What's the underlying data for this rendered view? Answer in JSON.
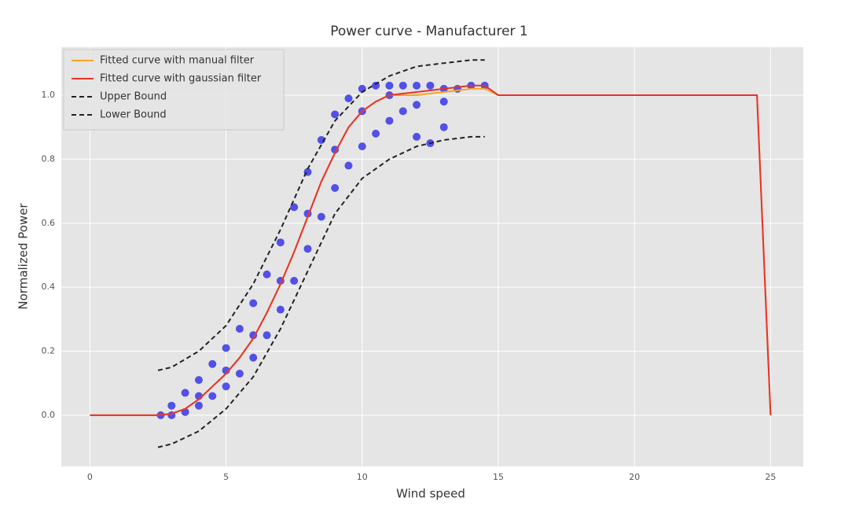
{
  "chart_data": {
    "type": "line",
    "title": "Power curve - Manufacturer 1",
    "x_label": "Wind speed",
    "y_label": "Normalized Power",
    "xlim": [
      -1.05,
      26.2
    ],
    "ylim": [
      -0.16,
      1.15
    ],
    "xticks": [
      0,
      5,
      10,
      15,
      20,
      25
    ],
    "yticks": [
      {
        "value": 0,
        "label": "0.0"
      },
      0.2,
      0.4,
      0.6,
      0.8,
      {
        "value": 1,
        "label": "1.0"
      }
    ],
    "grid": true,
    "legend": "upper left",
    "series": [
      {
        "type": "scatter",
        "color": "#1f1fe8",
        "x": [
          2.6,
          3,
          3.5,
          4,
          4.5,
          5,
          5.5,
          6,
          6.5,
          7,
          7.5,
          8,
          8.5,
          9,
          9.5,
          10,
          10.5,
          3,
          3.5,
          4,
          4.5,
          5,
          5.5,
          6,
          6.5,
          7,
          7.5,
          8,
          8.5,
          9,
          9.5,
          10,
          10.5,
          11,
          11.5,
          12,
          12.5,
          13,
          11,
          11.5,
          12,
          12.5,
          13,
          13.5,
          14,
          14.5,
          4,
          5,
          6,
          7,
          8,
          9,
          10,
          11,
          12,
          13
        ],
        "values": [
          0.0,
          0.03,
          0.07,
          0.11,
          0.16,
          0.21,
          0.27,
          0.35,
          0.44,
          0.54,
          0.65,
          0.76,
          0.86,
          0.94,
          0.99,
          1.02,
          1.03,
          0.0,
          0.01,
          0.03,
          0.06,
          0.09,
          0.13,
          0.18,
          0.25,
          0.33,
          0.42,
          0.52,
          0.62,
          0.71,
          0.78,
          0.84,
          0.88,
          0.92,
          0.95,
          0.87,
          0.85,
          0.9,
          1.03,
          1.03,
          1.03,
          1.03,
          1.02,
          1.02,
          1.03,
          1.03,
          0.06,
          0.14,
          0.25,
          0.42,
          0.63,
          0.83,
          0.95,
          1.0,
          0.97,
          0.98
        ]
      },
      {
        "name": "Fitted curve with manual filter",
        "color": "#f5a623",
        "style": "solid",
        "x": [
          0,
          2.5,
          3,
          3.5,
          4,
          4.5,
          5,
          5.5,
          6,
          6.5,
          7,
          7.5,
          8,
          8.5,
          9,
          9.5,
          10,
          10.5,
          11,
          12,
          13,
          14,
          14.5,
          15,
          24.5,
          25
        ],
        "values": [
          0,
          0,
          0.005,
          0.02,
          0.05,
          0.09,
          0.13,
          0.18,
          0.24,
          0.32,
          0.41,
          0.51,
          0.62,
          0.73,
          0.82,
          0.9,
          0.95,
          0.98,
          1.0,
          1.0,
          1.01,
          1.02,
          1.02,
          1.0,
          1.0,
          0
        ]
      },
      {
        "name": "Fitted curve with gaussian filter",
        "color": "#e8322a",
        "style": "solid",
        "x": [
          0,
          2.5,
          3,
          3.5,
          4,
          4.5,
          5,
          5.5,
          6,
          6.5,
          7,
          7.5,
          8,
          8.5,
          9,
          9.5,
          10,
          10.5,
          11,
          12,
          13,
          14,
          14.5,
          15,
          24.5,
          25
        ],
        "values": [
          0,
          0,
          0.005,
          0.02,
          0.05,
          0.09,
          0.13,
          0.18,
          0.24,
          0.32,
          0.41,
          0.51,
          0.62,
          0.73,
          0.82,
          0.9,
          0.95,
          0.98,
          1.0,
          1.01,
          1.02,
          1.03,
          1.03,
          1.0,
          1.0,
          0
        ]
      },
      {
        "name": "Upper Bound",
        "color": "#222222",
        "style": "dashed",
        "x": [
          2.5,
          3,
          4,
          5,
          6,
          7,
          8,
          9,
          10,
          11,
          12,
          13,
          14,
          14.5
        ],
        "values": [
          0.14,
          0.15,
          0.2,
          0.28,
          0.41,
          0.58,
          0.77,
          0.92,
          1.01,
          1.06,
          1.09,
          1.1,
          1.11,
          1.11
        ]
      },
      {
        "name": "Lower Bound",
        "color": "#222222",
        "style": "dashed",
        "x": [
          2.5,
          3,
          4,
          5,
          6,
          7,
          8,
          9,
          10,
          11,
          12,
          13,
          14,
          14.5
        ],
        "values": [
          -0.1,
          -0.09,
          -0.05,
          0.02,
          0.12,
          0.27,
          0.45,
          0.63,
          0.74,
          0.8,
          0.84,
          0.86,
          0.87,
          0.87
        ]
      }
    ]
  }
}
